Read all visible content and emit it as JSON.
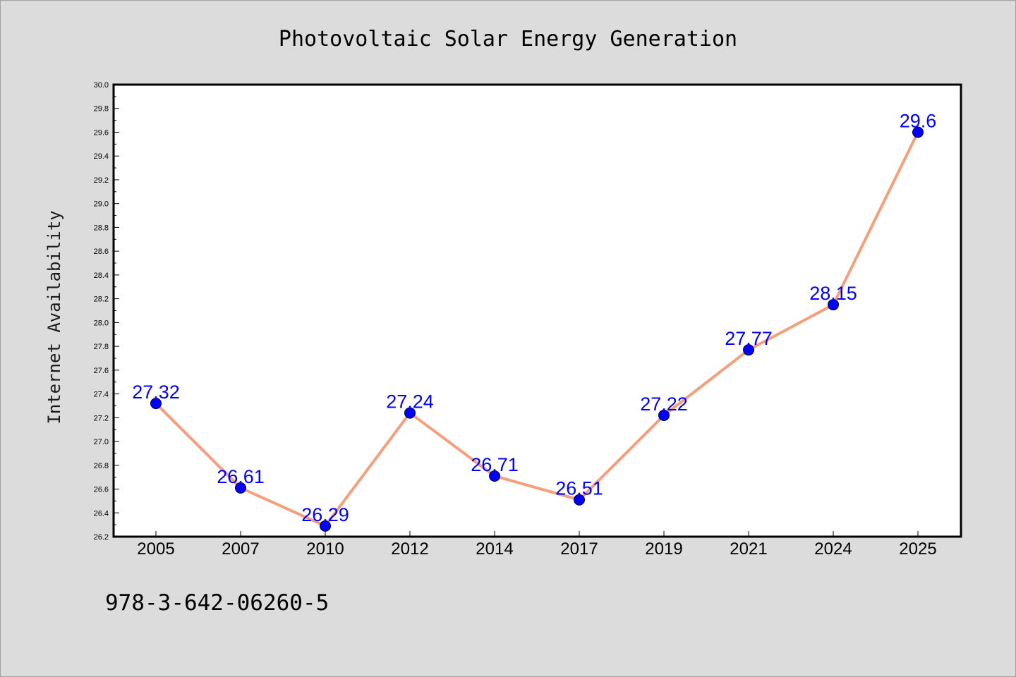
{
  "chart_data": {
    "type": "line",
    "title": "Photovoltaic Solar Energy Generation",
    "xlabel": "",
    "ylabel": "Internet Availability",
    "categories": [
      "2005",
      "2007",
      "2010",
      "2012",
      "2014",
      "2017",
      "2019",
      "2021",
      "2024",
      "2025"
    ],
    "series": [
      {
        "values": [
          27.32,
          26.61,
          26.29,
          27.24,
          26.71,
          26.51,
          27.22,
          27.77,
          28.15,
          29.6
        ],
        "line_color": "#f4a07c",
        "marker_color": "#0000ff"
      }
    ],
    "data_labels": [
      "27.32",
      "26.61",
      "26.29",
      "27.24",
      "26.71",
      "26.51",
      "27.22",
      "27.77",
      "28.15",
      "29.6"
    ],
    "ylim": [
      26.2,
      30.0
    ],
    "yticks": [
      "26.2",
      "26.4",
      "26.6",
      "26.8",
      "27.0",
      "27.2",
      "27.4",
      "27.6",
      "27.8",
      "28.0",
      "28.2",
      "28.4",
      "28.6",
      "28.8",
      "29.0",
      "29.2",
      "29.4",
      "29.6",
      "29.8",
      "30.0"
    ],
    "grid": false,
    "label_color": "#0000ff"
  },
  "footer": {
    "isbn": "978-3-642-06260-5"
  }
}
